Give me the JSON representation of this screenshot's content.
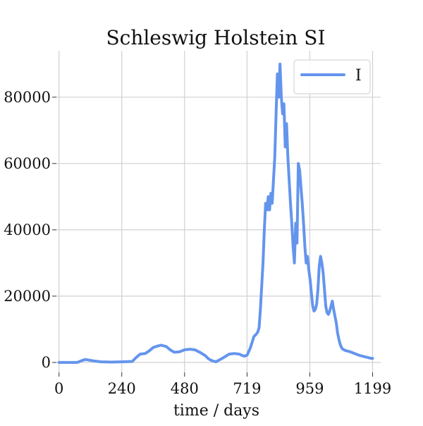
{
  "chart_data": {
    "type": "line",
    "title": "Schleswig Holstein SI",
    "xlabel": "time / days",
    "ylabel": "",
    "xlim": [
      -10,
      1230
    ],
    "ylim": [
      -3000,
      94000
    ],
    "xticks": [
      0,
      240,
      480,
      719,
      959,
      1199
    ],
    "xtick_labels": [
      "0",
      "240",
      "480",
      "719",
      "959",
      "1199"
    ],
    "yticks": [
      0,
      20000,
      40000,
      60000,
      80000
    ],
    "ytick_labels": [
      "0",
      "20000",
      "40000",
      "60000",
      "80000"
    ],
    "grid": true,
    "legend": {
      "position": "top-right"
    },
    "series": [
      {
        "name": "I",
        "color": "#6495ed",
        "x": [
          0,
          40,
          70,
          85,
          100,
          130,
          160,
          200,
          240,
          280,
          295,
          310,
          330,
          345,
          360,
          375,
          390,
          410,
          425,
          440,
          460,
          480,
          500,
          520,
          540,
          560,
          570,
          580,
          590,
          600,
          630,
          650,
          670,
          690,
          700,
          710,
          719,
          725,
          732,
          738,
          745,
          750,
          755,
          760,
          765,
          770,
          775,
          780,
          785,
          790,
          795,
          800,
          805,
          810,
          815,
          820,
          825,
          830,
          835,
          840,
          845,
          850,
          855,
          860,
          865,
          870,
          875,
          880,
          885,
          890,
          895,
          900,
          905,
          910,
          915,
          920,
          925,
          930,
          935,
          940,
          945,
          950,
          955,
          960,
          965,
          970,
          975,
          980,
          985,
          990,
          995,
          1000,
          1005,
          1010,
          1015,
          1020,
          1025,
          1030,
          1035,
          1040,
          1045,
          1050,
          1055,
          1060,
          1065,
          1070,
          1075,
          1080,
          1085,
          1090,
          1095,
          1100,
          1110,
          1120,
          1130,
          1140,
          1150,
          1160,
          1170,
          1180,
          1190,
          1199
        ],
        "y": [
          0,
          0,
          0,
          500,
          900,
          500,
          200,
          100,
          200,
          300,
          1500,
          2500,
          2700,
          3500,
          4500,
          4900,
          5200,
          4800,
          3800,
          3100,
          3200,
          3800,
          4000,
          3800,
          3000,
          2000,
          1200,
          700,
          400,
          200,
          1500,
          2500,
          2700,
          2500,
          2100,
          1900,
          2200,
          3200,
          4500,
          6000,
          7800,
          8200,
          8600,
          9200,
          10500,
          16000,
          23000,
          30000,
          40000,
          48000,
          46000,
          50000,
          46000,
          51000,
          48000,
          55000,
          62000,
          75000,
          87000,
          80000,
          90000,
          80000,
          75000,
          78000,
          65000,
          72000,
          62000,
          55000,
          48000,
          42000,
          35000,
          30000,
          42000,
          36000,
          60000,
          58000,
          53000,
          48000,
          42000,
          35000,
          30000,
          32000,
          28000,
          25000,
          21000,
          17000,
          15500,
          16000,
          17500,
          22000,
          29000,
          32000,
          30000,
          27000,
          22000,
          17000,
          15000,
          14500,
          15500,
          17000,
          18500,
          16000,
          14000,
          12000,
          9000,
          7000,
          5500,
          4500,
          4000,
          3800,
          3600,
          3500,
          3300,
          3000,
          2700,
          2400,
          2100,
          1900,
          1700,
          1500,
          1300,
          1200
        ]
      }
    ]
  }
}
